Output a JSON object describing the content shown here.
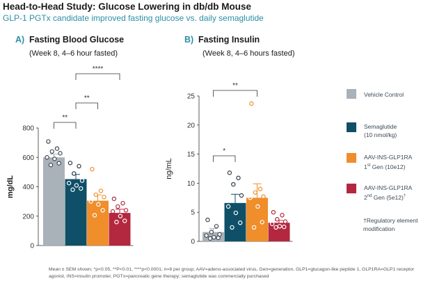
{
  "title": "Head-to-Head Study: Glucose Lowering in db/db Mouse",
  "subtitle": "GLP-1 PGTx candidate improved fasting glucose vs. daily semaglutide",
  "colors": {
    "vehicle": "#a9b1b9",
    "sema": "#0f4f67",
    "gen1": "#ef8e2b",
    "gen2": "#b3283f",
    "title_accent": "#2a8fa6"
  },
  "legend": [
    {
      "key": "vehicle",
      "label": "Vehicle Control"
    },
    {
      "key": "sema",
      "label": "Semaglutide",
      "sub": "(10 nmol/kg)"
    },
    {
      "key": "gen1",
      "label": "AAV-INS-GLP1RA",
      "sub_pre": "1",
      "sub_sup": "st",
      "sub_post": " Gen (10e12)"
    },
    {
      "key": "gen2",
      "label": "AAV-INS-GLP1RA",
      "sub_pre": "2",
      "sub_sup": "nd",
      "sub_post": " Gen (5e12)",
      "sub_mark": "†"
    }
  ],
  "footnote_regulatory": "†Regulatory element modification",
  "footer": "Mean ± SEM shown; *p<0.05, **P<0.01, ****p<0.0001; n=8 per group; AAV=adeno-associated virus, Gen=generation, GLP1=glucagon-like peptide 1, GLP1RA=GLP1 receptor agonist, INS=insulin promoter, PGTx=pancreatic gene therapy; semaglutide was commercially purchased",
  "chart_data": [
    {
      "type": "bar",
      "panel_label": "A)",
      "title": "Fasting Blood Glucose",
      "subtitle": "(Week 8, 4–6 hour fasted)",
      "ylabel": "mg/dL",
      "ylim": [
        0,
        800
      ],
      "yticks": [
        0,
        200,
        400,
        600,
        800
      ],
      "groups": [
        {
          "key": "vehicle",
          "mean": 600,
          "sem": 22,
          "points": [
            708,
            660,
            640,
            628,
            600,
            590,
            560,
            548
          ]
        },
        {
          "key": "sema",
          "mean": 452,
          "sem": 32,
          "points": [
            562,
            540,
            490,
            442,
            425,
            410,
            388,
            380
          ]
        },
        {
          "key": "gen1",
          "mean": 305,
          "sem": 40,
          "points": [
            520,
            372,
            346,
            330,
            300,
            280,
            240,
            206
          ]
        },
        {
          "key": "gen2",
          "mean": 222,
          "sem": 25,
          "points": [
            318,
            288,
            265,
            240,
            232,
            200,
            168,
            160
          ]
        }
      ],
      "significance": [
        {
          "from": 0,
          "to": 1,
          "label": "**"
        },
        {
          "from": 1,
          "to": 2,
          "label": "**"
        },
        {
          "from": 1,
          "to": 3,
          "label": "****"
        }
      ]
    },
    {
      "type": "bar",
      "panel_label": "B)",
      "title": "Fasting Insulin",
      "subtitle": "(Week 8, 4–6 hours fasted)",
      "ylabel": "ng/mL",
      "ylim": [
        0,
        25
      ],
      "yticks": [
        0,
        5,
        10,
        15,
        20,
        25
      ],
      "groups": [
        {
          "key": "vehicle",
          "mean": 1.6,
          "sem": 0.6,
          "points": [
            3.7,
            2.6,
            1.6,
            1.2,
            1.0,
            0.7,
            0.6,
            0.5
          ]
        },
        {
          "key": "sema",
          "mean": 6.6,
          "sem": 1.5,
          "points": [
            11.8,
            10.9,
            9.8,
            7.9,
            6.0,
            4.9,
            3.2,
            2.4
          ]
        },
        {
          "key": "gen1",
          "mean": 7.5,
          "sem": 2.4,
          "points": [
            23.7,
            9.0,
            8.4,
            7.7,
            7.5,
            6.0,
            3.3,
            2.4
          ]
        },
        {
          "key": "gen2",
          "mean": 3.2,
          "sem": 0.4,
          "points": [
            5.0,
            4.5,
            3.8,
            3.4,
            3.0,
            2.6,
            2.5,
            2.4
          ]
        }
      ],
      "significance": [
        {
          "from": 0,
          "to": 1,
          "label": "*"
        },
        {
          "from": 0,
          "to": 2,
          "label": "**"
        }
      ]
    }
  ]
}
